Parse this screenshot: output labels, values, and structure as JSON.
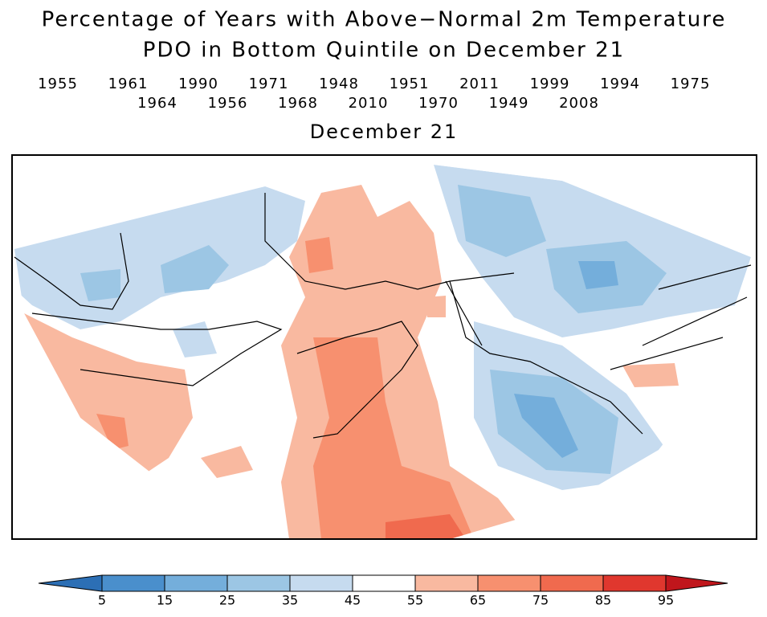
{
  "title": [
    "Percentage of Years with Above−Normal 2m Temperature",
    "PDO in Bottom Quintile on December 21"
  ],
  "years": [
    [
      "1955",
      "1961",
      "1990",
      "1971",
      "1948",
      "1951",
      "2011",
      "1999",
      "1994",
      "1975"
    ],
    [
      "1964",
      "1956",
      "1968",
      "2010",
      "1970",
      "1949",
      "2008"
    ]
  ],
  "subtitle": "December 21",
  "colorbar": {
    "ticks": [
      5,
      15,
      25,
      35,
      45,
      55,
      65,
      75,
      85,
      95
    ],
    "colors": [
      "#2c6fb5",
      "#4a8fcc",
      "#74aedb",
      "#9cc6e4",
      "#c6dbef",
      "#ffffff",
      "#f9b9a0",
      "#f7906f",
      "#f06a4e",
      "#e0372e",
      "#c0161c"
    ]
  }
}
